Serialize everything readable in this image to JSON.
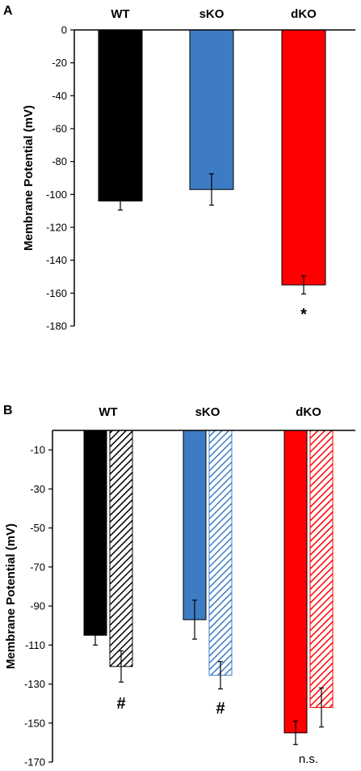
{
  "chart_data": [
    {
      "type": "bar",
      "panel": "A",
      "ylabel": "Membrane Potential (mV)",
      "ylim": [
        -180,
        0
      ],
      "yticks": [
        0,
        -20,
        -40,
        -60,
        -80,
        -100,
        -120,
        -140,
        -160,
        -180
      ],
      "categories": [
        "WT",
        "sKO",
        "dKO"
      ],
      "values": [
        -104,
        -97,
        -155
      ],
      "errors": [
        5.5,
        9.5,
        5.5
      ],
      "colors": [
        "#000000",
        "#3d7cc4",
        "#ff0000"
      ],
      "annotations": [
        "",
        "",
        "*"
      ],
      "legend": "none",
      "grid": false
    },
    {
      "type": "bar",
      "panel": "B",
      "ylabel": "Membrane Potential (mV)",
      "ylim": [
        -170,
        0
      ],
      "yticks": [
        -10,
        -30,
        -50,
        -70,
        -90,
        -110,
        -130,
        -150,
        -170
      ],
      "categories": [
        "WT",
        "sKO",
        "dKO"
      ],
      "series": [
        {
          "values": [
            -105,
            -97,
            -155
          ],
          "errors": [
            5,
            10,
            6
          ],
          "fill": "solid"
        },
        {
          "values": [
            -121,
            -125.5,
            -142
          ],
          "errors": [
            8,
            7,
            10
          ],
          "fill": "hatched"
        }
      ],
      "colors": [
        "#000000",
        "#3d7cc4",
        "#ff0000"
      ],
      "annotations": [
        "#",
        "#",
        "n.s."
      ],
      "legend": "none",
      "grid": false
    }
  ]
}
